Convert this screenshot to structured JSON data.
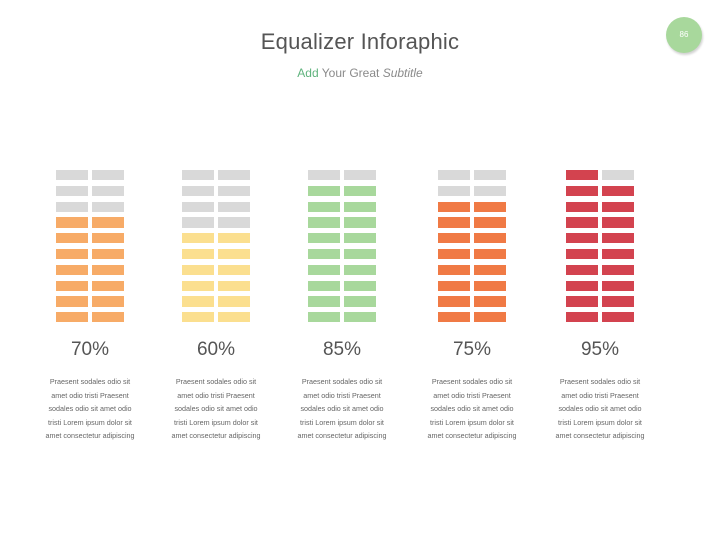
{
  "header": {
    "title": "Equalizer Inforaphic",
    "subtitle_accent": "Add",
    "subtitle_middle": "Your Great",
    "subtitle_italic": "Subtitle",
    "page_number": "86"
  },
  "equalizers": [
    {
      "percent_label": "70%",
      "filled_rows": 7,
      "total_rows": 10,
      "color": "#f7ab67",
      "description_lines": [
        "Praesent sodales odio sit",
        "amet odio tristi Praesent",
        "sodales odio sit amet odio",
        "tristi Lorem ipsum dolor sit",
        "amet consectetur adipiscing"
      ]
    },
    {
      "percent_label": "60%",
      "filled_rows": 6,
      "total_rows": 10,
      "color": "#fbdf8f",
      "description_lines": [
        "Praesent sodales odio sit",
        "amet odio tristi Praesent",
        "sodales odio sit amet odio",
        "tristi Lorem ipsum dolor sit",
        "amet consectetur adipiscing"
      ]
    },
    {
      "percent_label": "85%",
      "filled_rows": 9,
      "total_rows": 10,
      "color": "#a8d89c",
      "description_lines": [
        "Praesent sodales odio sit",
        "amet odio tristi Praesent",
        "sodales odio sit amet odio",
        "tristi Lorem ipsum dolor sit",
        "amet consectetur adipiscing"
      ]
    },
    {
      "percent_label": "75%",
      "filled_rows": 8,
      "total_rows": 10,
      "color": "#f07a45",
      "description_lines": [
        "Praesent sodales odio sit",
        "amet odio tristi Praesent",
        "sodales odio sit amet odio",
        "tristi Lorem ipsum dolor sit",
        "amet consectetur adipiscing"
      ]
    },
    {
      "percent_label": "95%",
      "filled_rows": 10,
      "total_rows": 10,
      "left_column_full": true,
      "color": "#d3434f",
      "description_lines": [
        "Praesent sodales odio sit",
        "amet odio tristi Praesent",
        "sodales odio sit amet odio",
        "tristi Lorem ipsum dolor sit",
        "amet consectetur adipiscing"
      ]
    }
  ],
  "empty_color": "#d9d9d9"
}
